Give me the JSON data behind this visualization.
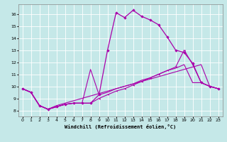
{
  "xlabel": "Windchill (Refroidissement éolien,°C)",
  "xlim": [
    -0.5,
    23.5
  ],
  "ylim": [
    7.5,
    16.8
  ],
  "yticks": [
    8,
    9,
    10,
    11,
    12,
    13,
    14,
    15,
    16
  ],
  "xticks": [
    0,
    1,
    2,
    3,
    4,
    5,
    6,
    7,
    8,
    9,
    10,
    11,
    12,
    13,
    14,
    15,
    16,
    17,
    18,
    19,
    20,
    21,
    22,
    23
  ],
  "bg_color": "#c5e8e8",
  "line_color": "#aa00aa",
  "grid_color": "#ffffff",
  "line_main_x": [
    0,
    1,
    2,
    3,
    4,
    5,
    6,
    7,
    8,
    9,
    10,
    11,
    12,
    13,
    14,
    15,
    16,
    17,
    18,
    19,
    20,
    21,
    22,
    23
  ],
  "line_main_y": [
    9.8,
    9.5,
    8.4,
    8.1,
    8.3,
    8.5,
    8.6,
    8.6,
    8.6,
    9.3,
    13.0,
    16.1,
    15.7,
    16.3,
    15.8,
    15.5,
    15.1,
    14.1,
    13.0,
    12.8,
    11.9,
    10.3,
    10.0,
    9.8
  ],
  "line_a_x": [
    0,
    1,
    2,
    3,
    4,
    5,
    6,
    7,
    8,
    9,
    10,
    11,
    12,
    13,
    14,
    15,
    16,
    17,
    18,
    19,
    20,
    21,
    22,
    23
  ],
  "line_a_y": [
    9.8,
    9.5,
    8.4,
    8.1,
    8.3,
    8.5,
    8.6,
    8.6,
    8.6,
    9.0,
    9.3,
    9.6,
    9.8,
    10.1,
    10.4,
    10.7,
    11.0,
    11.3,
    11.6,
    13.0,
    11.8,
    10.3,
    10.0,
    9.8
  ],
  "line_b_x": [
    0,
    1,
    2,
    3,
    4,
    5,
    6,
    7,
    8,
    9,
    10,
    11,
    12,
    13,
    14,
    15,
    16,
    17,
    18,
    19,
    20,
    21,
    22,
    23
  ],
  "line_b_y": [
    9.8,
    9.5,
    8.4,
    8.1,
    8.3,
    8.5,
    8.6,
    8.6,
    11.4,
    9.3,
    9.5,
    9.8,
    10.0,
    10.2,
    10.5,
    10.7,
    11.0,
    11.3,
    11.5,
    11.8,
    10.3,
    10.3,
    10.0,
    9.8
  ],
  "line_c_x": [
    0,
    1,
    2,
    3,
    4,
    5,
    6,
    7,
    8,
    9,
    10,
    11,
    12,
    13,
    14,
    15,
    16,
    17,
    18,
    19,
    20,
    21,
    22,
    23
  ],
  "line_c_y": [
    9.8,
    9.5,
    8.4,
    8.1,
    8.4,
    8.6,
    8.8,
    9.0,
    9.2,
    9.4,
    9.6,
    9.8,
    10.0,
    10.2,
    10.4,
    10.6,
    10.8,
    11.0,
    11.2,
    11.4,
    11.6,
    11.8,
    10.0,
    9.8
  ]
}
